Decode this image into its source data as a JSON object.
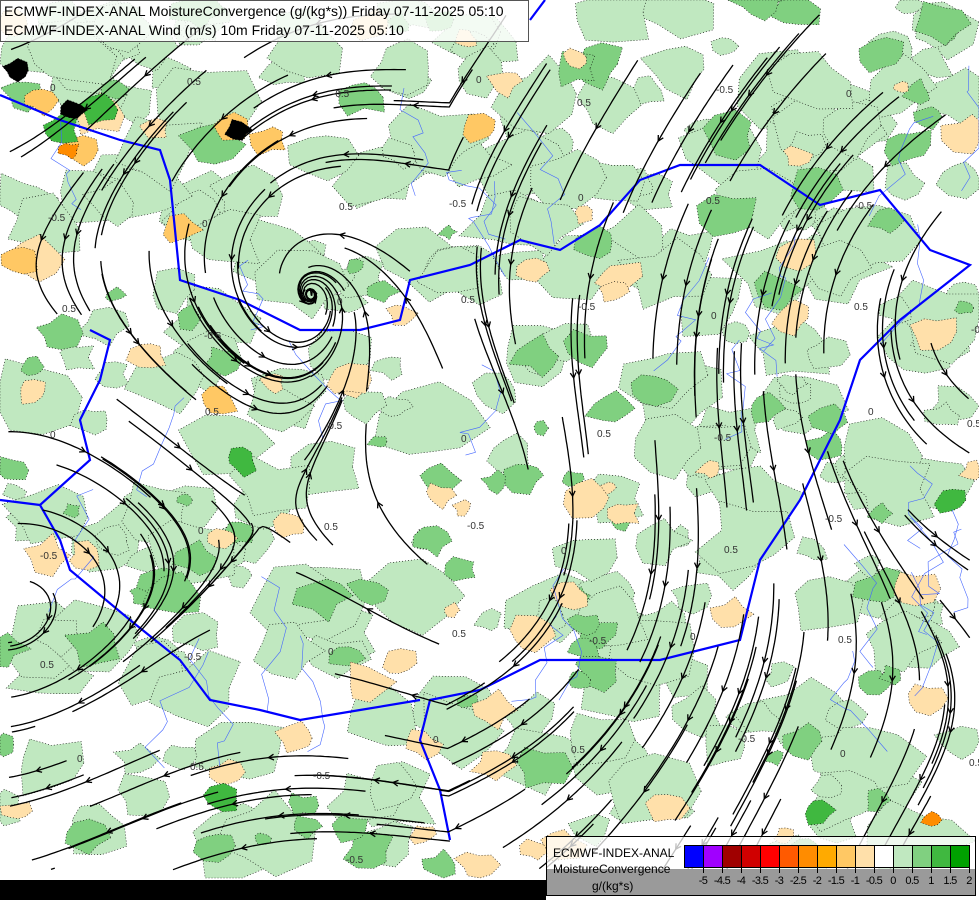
{
  "header": {
    "line1": "ECMWF-INDEX-ANAL MoistureConvergence (g/(kg*s)) Friday 07-11-2025 05:10",
    "line2": "ECMWF-INDEX-ANAL Wind (m/s) 10m Friday 07-11-2025 05:10"
  },
  "legend": {
    "model": "ECMWF-INDEX-ANAL",
    "parameter": "MoistureConvergence",
    "units": "g/(kg*s)",
    "colors": [
      "#0000ff",
      "#a000ff",
      "#a00000",
      "#d00000",
      "#ff0000",
      "#ff5a00",
      "#ff8c00",
      "#ffaa00",
      "#ffc864",
      "#ffe0aa",
      "#ffffff",
      "#c0e8c0",
      "#80d080",
      "#40b840",
      "#00a000"
    ],
    "ticks": [
      "-5",
      "-4.5",
      "-4",
      "-3.5",
      "-3",
      "-2.5",
      "-2",
      "-1.5",
      "-1",
      "-0.5",
      "0",
      "0.5",
      "1",
      "1.5",
      "2"
    ]
  },
  "map": {
    "contour_labels": [
      "0",
      "0.5",
      "-0.5"
    ],
    "border_color": "#0000ff",
    "streamline_color": "#000000"
  }
}
